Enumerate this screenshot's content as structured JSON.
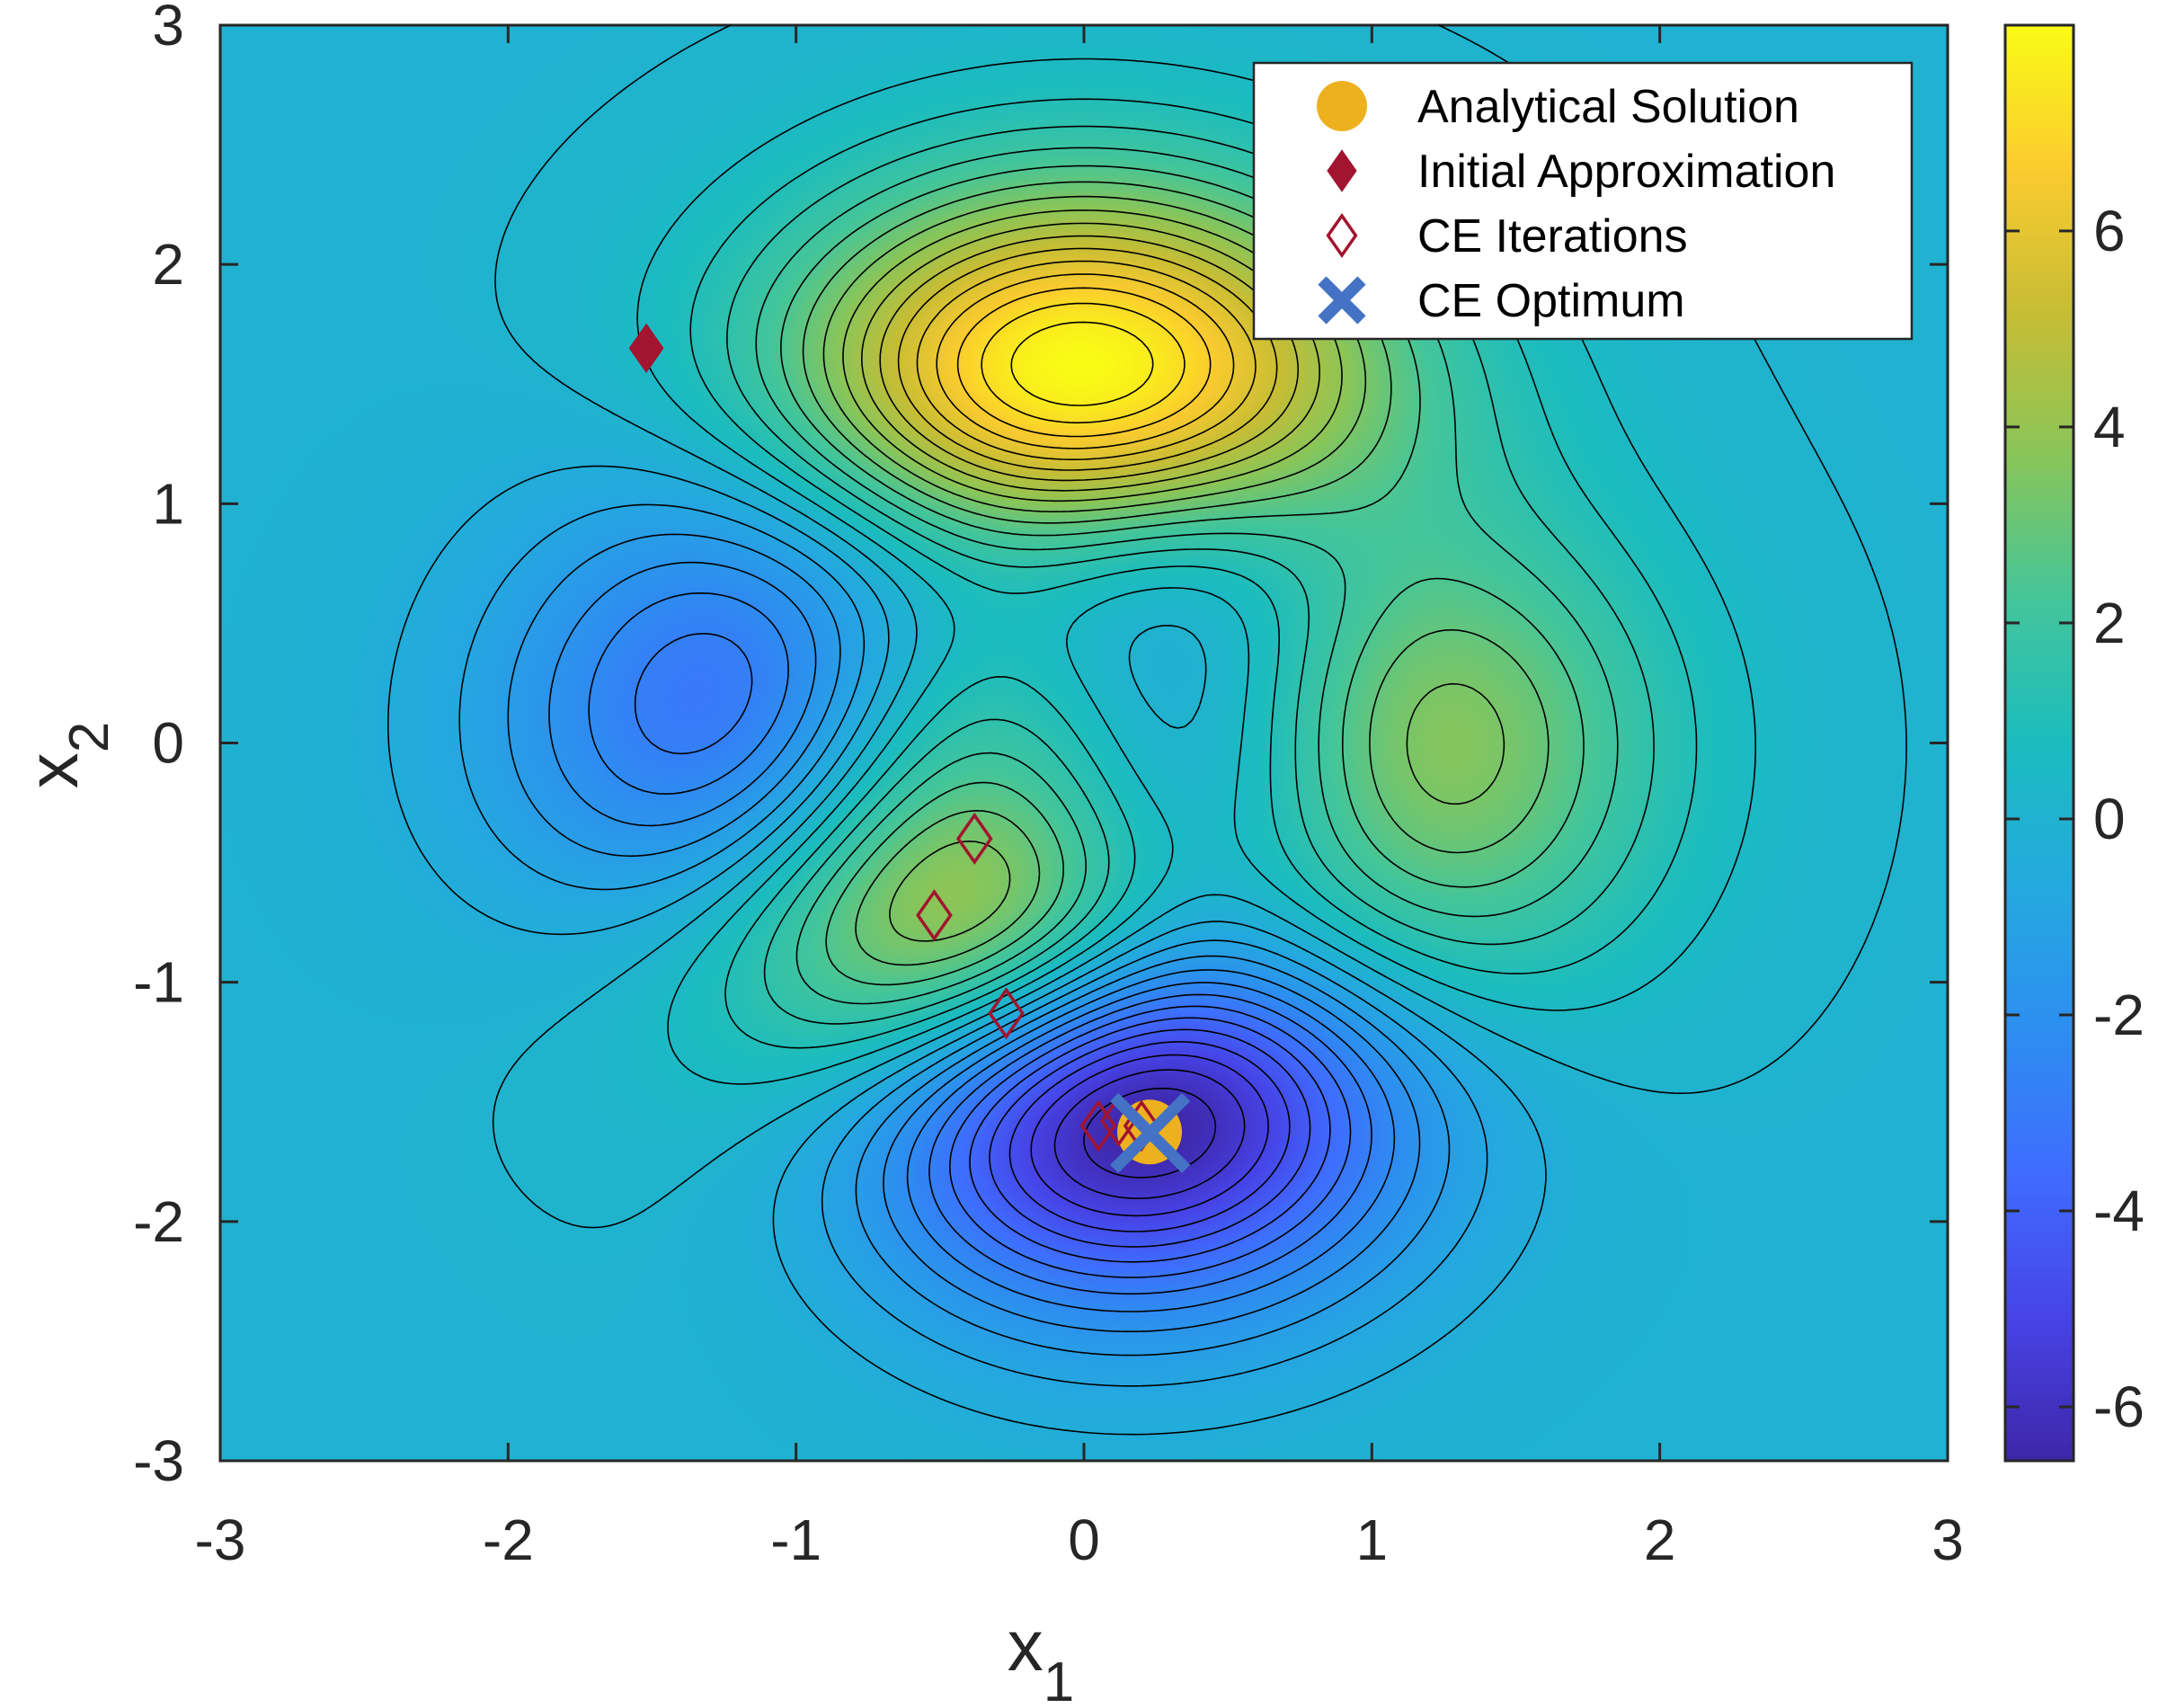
{
  "chart_data": {
    "type": "contour",
    "xlabel": "x",
    "xlabel_sub": "1",
    "ylabel": "x",
    "ylabel_sub": "2",
    "xlim": [
      -3,
      3
    ],
    "ylim": [
      -3,
      3
    ],
    "x_ticks": [
      -3,
      -2,
      -1,
      0,
      1,
      2,
      3
    ],
    "y_ticks": [
      -3,
      -2,
      -1,
      0,
      1,
      2,
      3
    ],
    "x_tick_labels": [
      "-3",
      "-2",
      "-1",
      "0",
      "1",
      "2",
      "3"
    ],
    "y_tick_labels": [
      "-3",
      "-2",
      "-1",
      "0",
      "1",
      "2",
      "3"
    ],
    "colorbar": {
      "limits": [
        -6.55,
        8.1
      ],
      "ticks": [
        -6,
        -4,
        -2,
        0,
        2,
        4,
        6
      ],
      "tick_labels": [
        "-6",
        "-4",
        "-2",
        "0",
        "2",
        "4",
        "6"
      ],
      "colormap": "parula",
      "colors": [
        "#3e26a8",
        "#4743e7",
        "#3f6cfe",
        "#2d8ef0",
        "#24a9df",
        "#1bbcbf",
        "#44c59a",
        "#89c559",
        "#c7bd35",
        "#fbcb2f",
        "#f9fb15"
      ]
    },
    "surface_extrema": [
      {
        "label": "global max",
        "x": 0.0,
        "y": 1.58,
        "value": 8.1
      },
      {
        "label": "local max",
        "x": 1.29,
        "y": 0.0,
        "value": 3.78
      },
      {
        "label": "local max",
        "x": -0.46,
        "y": -0.63,
        "value": 3.78
      },
      {
        "label": "global min",
        "x": 0.23,
        "y": -1.63,
        "value": -6.55
      },
      {
        "label": "local min",
        "x": -1.35,
        "y": 0.2,
        "value": -3.05
      },
      {
        "label": "saddle region",
        "x": 0.3,
        "y": 0.3,
        "value": -0.6
      }
    ],
    "contour_levels": 30,
    "series": [
      {
        "name": "Analytical Solution",
        "marker": "filled-circle",
        "color": "#EDB120",
        "points": [
          {
            "x": 0.228,
            "y": -1.626
          }
        ]
      },
      {
        "name": "Initial Approximation",
        "marker": "filled-diamond",
        "color": "#A2142F",
        "points": [
          {
            "x": -1.52,
            "y": 1.65
          }
        ]
      },
      {
        "name": "CE Iterations",
        "marker": "open-diamond",
        "color": "#A2142F",
        "points": [
          {
            "x": -0.38,
            "y": -0.4
          },
          {
            "x": -0.52,
            "y": -0.72
          },
          {
            "x": -0.27,
            "y": -1.13
          },
          {
            "x": 0.05,
            "y": -1.6
          },
          {
            "x": 0.12,
            "y": -1.58
          },
          {
            "x": 0.2,
            "y": -1.6
          }
        ]
      },
      {
        "name": "CE Optimum",
        "marker": "x",
        "color": "#4472C4",
        "points": [
          {
            "x": 0.23,
            "y": -1.63
          }
        ]
      }
    ],
    "legend_position": "top-right"
  }
}
